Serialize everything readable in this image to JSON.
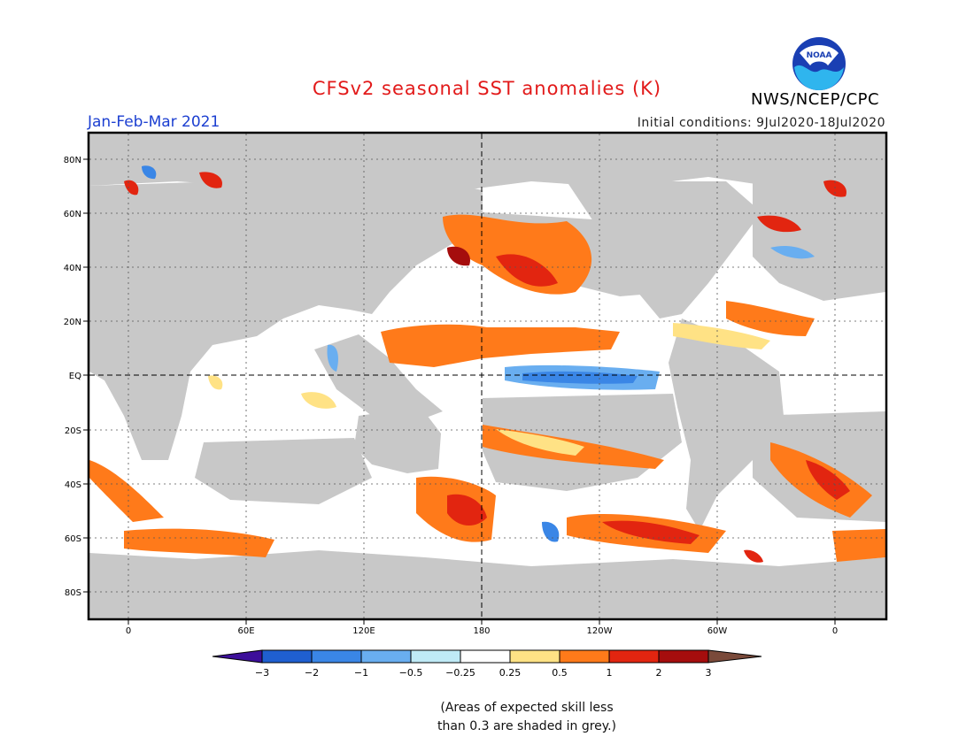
{
  "header": {
    "title": "CFSv2 seasonal SST anomalies (K)",
    "season": "Jan-Feb-Mar 2021",
    "initial_conditions": "Initial conditions: 9Jul2020-18Jul2020",
    "agency": "NWS/NCEP/CPC",
    "logo_text": "NOAA"
  },
  "map": {
    "lat_labels": [
      "80N",
      "60N",
      "40N",
      "20N",
      "EQ",
      "20S",
      "40S",
      "60S",
      "80S"
    ],
    "lon_labels": [
      "0",
      "60E",
      "120E",
      "180",
      "120W",
      "60W",
      "0"
    ],
    "land_color": "#c8c8c8",
    "ocean_color": "#ffffff"
  },
  "colorbar": {
    "ticks": [
      "-3",
      "-2",
      "-1",
      "-0.5",
      "-0.25",
      "0.25",
      "0.5",
      "1",
      "2",
      "3"
    ],
    "colors": [
      "#3d0f9a",
      "#1f5fd0",
      "#3a86e6",
      "#69aef0",
      "#bfeaf6",
      "#ffffff",
      "#ffe285",
      "#ff7a1a",
      "#e22510",
      "#a50d0d",
      "#7a4a3a"
    ]
  },
  "footnote": {
    "line1": "(Areas of expected skill less",
    "line2": "than 0.3 are shaded in grey.)"
  }
}
